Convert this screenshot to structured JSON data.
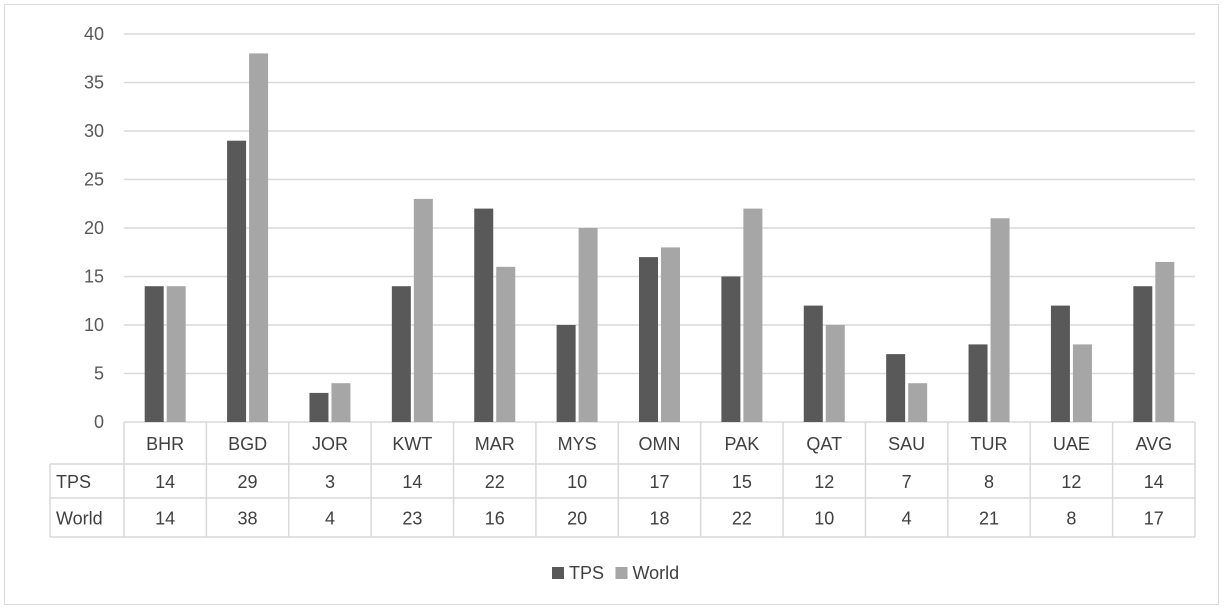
{
  "chart_data": {
    "type": "bar",
    "categories": [
      "BHR",
      "BGD",
      "JOR",
      "KWT",
      "MAR",
      "MYS",
      "OMN",
      "PAK",
      "QAT",
      "SAU",
      "TUR",
      "UAE",
      "AVG"
    ],
    "series": [
      {
        "name": "TPS",
        "values": [
          14,
          29,
          3,
          14,
          22,
          10,
          17,
          15,
          12,
          7,
          8,
          12,
          14
        ],
        "table_labels": [
          "14",
          "29",
          "3",
          "14",
          "22",
          "10",
          "17",
          "15",
          "12",
          "7",
          "8",
          "12",
          "14"
        ],
        "color": "#595959"
      },
      {
        "name": "World",
        "values": [
          14,
          38,
          4,
          23,
          16,
          20,
          18,
          22,
          10,
          4,
          21,
          8,
          16.5
        ],
        "table_labels": [
          "14",
          "38",
          "4",
          "23",
          "16",
          "20",
          "18",
          "22",
          "10",
          "4",
          "21",
          "8",
          "17"
        ],
        "color": "#a6a6a6"
      }
    ],
    "y_ticks": [
      "0",
      "5",
      "10",
      "15",
      "20",
      "25",
      "30",
      "35",
      "40"
    ],
    "ylim": [
      0,
      40
    ],
    "grid": true,
    "data_table": true,
    "legend_position": "bottom",
    "gridline_color": "#d9d9d9"
  }
}
